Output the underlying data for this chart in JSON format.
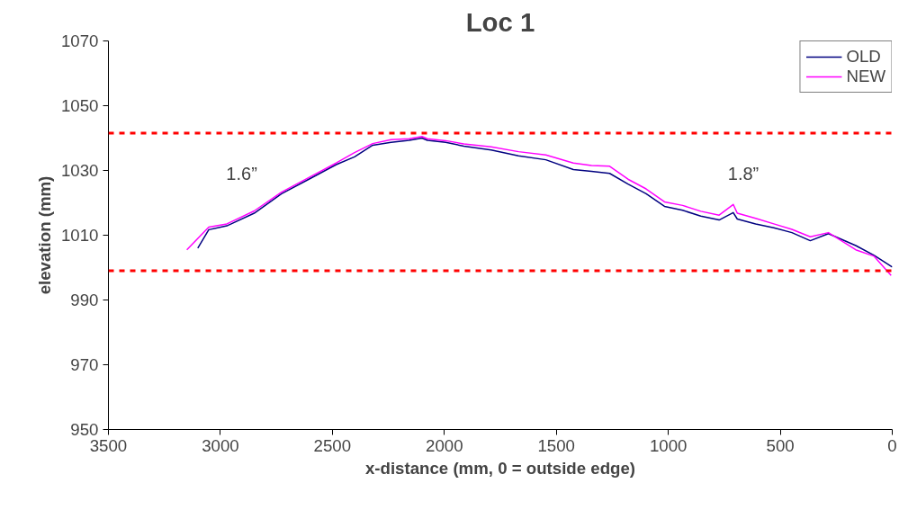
{
  "chart_data": {
    "type": "line",
    "title": "Loc 1",
    "xlabel": "x-distance (mm, 0 = outside edge)",
    "ylabel": "elevation (mm)",
    "xlim": [
      3500,
      0
    ],
    "ylim": [
      950,
      1070
    ],
    "xticks": [
      3500,
      3000,
      2500,
      2000,
      1500,
      1000,
      500,
      0
    ],
    "yticks": [
      950,
      970,
      990,
      1010,
      1030,
      1050,
      1070
    ],
    "grid": false,
    "legend": "top right",
    "marker": "none",
    "line_style": "solid",
    "series": [
      {
        "name": "OLD",
        "color": "#000080",
        "x": [
          3101,
          3052,
          2971,
          2849,
          2727,
          2605,
          2483,
          2401,
          2320,
          2238,
          2157,
          2100,
          2076,
          1994,
          1913,
          1791,
          1669,
          1547,
          1424,
          1343,
          1262,
          1180,
          1099,
          1017,
          936,
          855,
          773,
          710,
          692,
          610,
          529,
          448,
          366,
          285,
          163,
          81,
          0
        ],
        "values": [
          1006,
          1011.7,
          1012.9,
          1016.8,
          1022.8,
          1027.3,
          1031.8,
          1034.2,
          1037.8,
          1038.7,
          1039.3,
          1040,
          1039.3,
          1038.7,
          1037.5,
          1036.3,
          1034.5,
          1033.3,
          1030.3,
          1029.7,
          1029.1,
          1025.8,
          1022.8,
          1018.9,
          1017.7,
          1015.9,
          1014.7,
          1017,
          1015.0,
          1013.5,
          1012.3,
          1010.8,
          1008.3,
          1010.5,
          1006.8,
          1003.8,
          1000.2
        ]
      },
      {
        "name": "NEW",
        "color": "#ff00ff",
        "x": [
          3150,
          3052,
          2971,
          2849,
          2727,
          2605,
          2483,
          2401,
          2320,
          2238,
          2157,
          2100,
          2076,
          1994,
          1913,
          1791,
          1669,
          1547,
          1424,
          1343,
          1262,
          1180,
          1099,
          1017,
          936,
          855,
          773,
          710,
          692,
          610,
          529,
          448,
          366,
          285,
          163,
          81,
          5
        ],
        "values": [
          1005.5,
          1012.5,
          1013.5,
          1017.5,
          1023.3,
          1027.8,
          1032.3,
          1035.5,
          1038.3,
          1039.5,
          1039.8,
          1040.5,
          1039.8,
          1039.2,
          1038.2,
          1037.3,
          1035.8,
          1034.8,
          1032.3,
          1031.5,
          1031.3,
          1027.3,
          1024.3,
          1020.3,
          1019.2,
          1017.4,
          1016.2,
          1019.5,
          1016.8,
          1015.2,
          1013.5,
          1011.8,
          1009.5,
          1010.8,
          1005.5,
          1003.5,
          997.6
        ]
      }
    ],
    "ref_lines": [
      {
        "axis": "y",
        "value": 1041.5,
        "color": "#ff0000",
        "line_style": "dashed"
      },
      {
        "axis": "y",
        "value": 999,
        "color": "#ff0000",
        "line_style": "dashed"
      }
    ],
    "annotations": [
      "1.6”",
      "1.8”"
    ]
  }
}
